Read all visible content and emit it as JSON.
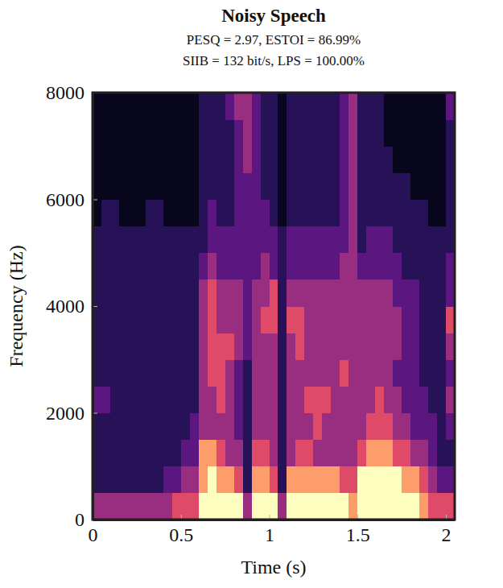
{
  "chart_data": {
    "type": "heatmap",
    "title": "Noisy Speech",
    "subtitle": [
      "PESQ = 2.97, ESTOI = 86.99%",
      "SIIB = 132 bit/s, LPS = 100.00%"
    ],
    "x_label": "Time (s)",
    "y_label": "Frequency (Hz)",
    "xlim": [
      0,
      2.05
    ],
    "ylim": [
      0,
      8000
    ],
    "xticks": [
      0,
      0.5,
      1,
      1.5,
      2
    ],
    "yticks": [
      0,
      2000,
      4000,
      6000,
      8000
    ],
    "zlim": [
      -70,
      0
    ],
    "x": [
      0.025,
      0.075,
      0.125,
      0.175,
      0.225,
      0.275,
      0.325,
      0.375,
      0.425,
      0.475,
      0.525,
      0.575,
      0.625,
      0.675,
      0.725,
      0.775,
      0.825,
      0.875,
      0.925,
      0.975,
      1.025,
      1.075,
      1.125,
      1.175,
      1.225,
      1.275,
      1.325,
      1.375,
      1.425,
      1.475,
      1.525,
      1.575,
      1.625,
      1.675,
      1.725,
      1.775,
      1.825,
      1.875,
      1.925,
      1.975,
      2.025
    ],
    "y": [
      250,
      750,
      1250,
      1750,
      2250,
      2750,
      3250,
      3750,
      4250,
      4750,
      5250,
      5750,
      6250,
      6750,
      7250,
      7750
    ],
    "z": [
      [
        -30,
        -30,
        -30,
        -30,
        -30,
        -30,
        -30,
        -30,
        -30,
        -20,
        -20,
        -20,
        0,
        0,
        0,
        0,
        0,
        -30,
        0,
        0,
        0,
        -30,
        0,
        0,
        0,
        0,
        0,
        0,
        0,
        -10,
        0,
        0,
        0,
        0,
        0,
        0,
        0,
        -10,
        -20,
        -20,
        -20
      ],
      [
        -50,
        -50,
        -50,
        -50,
        -50,
        -50,
        -50,
        -50,
        -40,
        -40,
        -30,
        -30,
        -10,
        0,
        -10,
        -10,
        -20,
        -50,
        -10,
        -10,
        -20,
        -50,
        -10,
        -10,
        -10,
        -10,
        -10,
        -10,
        -20,
        -20,
        0,
        0,
        0,
        0,
        0,
        -10,
        -10,
        -20,
        -30,
        -40,
        -40
      ],
      [
        -50,
        -50,
        -50,
        -50,
        -50,
        -50,
        -50,
        -50,
        -50,
        -50,
        -40,
        -40,
        -10,
        -10,
        -20,
        -30,
        -30,
        -50,
        -20,
        -20,
        -30,
        -50,
        -30,
        -20,
        -20,
        -30,
        -30,
        -30,
        -30,
        -30,
        -20,
        -10,
        -10,
        -10,
        -20,
        -20,
        -30,
        -30,
        -40,
        -50,
        -50
      ],
      [
        -50,
        -50,
        -50,
        -50,
        -50,
        -50,
        -50,
        -50,
        -50,
        -50,
        -50,
        -40,
        -30,
        -30,
        -30,
        -30,
        -40,
        -50,
        -30,
        -30,
        -30,
        -50,
        -30,
        -30,
        -30,
        -20,
        -30,
        -30,
        -30,
        -30,
        -30,
        -20,
        -20,
        -20,
        -30,
        -30,
        -40,
        -40,
        -40,
        -50,
        -40
      ],
      [
        -40,
        -40,
        -50,
        -50,
        -50,
        -50,
        -50,
        -50,
        -50,
        -50,
        -50,
        -50,
        -30,
        -30,
        -20,
        -30,
        -40,
        -50,
        -30,
        -30,
        -30,
        -50,
        -30,
        -30,
        -20,
        -20,
        -20,
        -30,
        -30,
        -30,
        -30,
        -30,
        -20,
        -30,
        -30,
        -40,
        -40,
        -40,
        -50,
        -50,
        -30
      ],
      [
        -50,
        -50,
        -50,
        -50,
        -50,
        -50,
        -50,
        -50,
        -50,
        -50,
        -50,
        -50,
        -30,
        -20,
        -20,
        -30,
        -40,
        -50,
        -30,
        -30,
        -30,
        -50,
        -30,
        -30,
        -30,
        -30,
        -30,
        -30,
        -20,
        -30,
        -30,
        -30,
        -30,
        -30,
        -40,
        -40,
        -40,
        -50,
        -50,
        -50,
        -40
      ],
      [
        -50,
        -50,
        -50,
        -50,
        -50,
        -50,
        -50,
        -50,
        -50,
        -50,
        -50,
        -50,
        -30,
        -20,
        -20,
        -20,
        -30,
        -40,
        -30,
        -30,
        -30,
        -50,
        -30,
        -20,
        -30,
        -30,
        -30,
        -30,
        -30,
        -30,
        -30,
        -30,
        -30,
        -30,
        -30,
        -40,
        -40,
        -50,
        -50,
        -50,
        -30
      ],
      [
        -50,
        -50,
        -50,
        -50,
        -50,
        -50,
        -50,
        -50,
        -50,
        -50,
        -50,
        -50,
        -30,
        -20,
        -30,
        -30,
        -30,
        -40,
        -30,
        -20,
        -20,
        -50,
        -20,
        -20,
        -30,
        -30,
        -30,
        -30,
        -30,
        -30,
        -30,
        -30,
        -30,
        -30,
        -30,
        -40,
        -40,
        -50,
        -50,
        -50,
        -20
      ],
      [
        -50,
        -50,
        -50,
        -50,
        -50,
        -50,
        -50,
        -50,
        -50,
        -50,
        -50,
        -50,
        -30,
        -20,
        -30,
        -30,
        -30,
        -40,
        -30,
        -30,
        -20,
        -50,
        -30,
        -30,
        -30,
        -30,
        -30,
        -30,
        -30,
        -30,
        -30,
        -30,
        -30,
        -30,
        -40,
        -40,
        -40,
        -50,
        -50,
        -50,
        -40
      ],
      [
        -50,
        -50,
        -50,
        -50,
        -50,
        -50,
        -50,
        -50,
        -50,
        -50,
        -50,
        -50,
        -40,
        -30,
        -40,
        -40,
        -40,
        -40,
        -40,
        -30,
        -40,
        -50,
        -40,
        -40,
        -40,
        -40,
        -40,
        -40,
        -30,
        -30,
        -40,
        -40,
        -40,
        -40,
        -40,
        -50,
        -50,
        -50,
        -50,
        -50,
        -40
      ],
      [
        -50,
        -50,
        -50,
        -50,
        -50,
        -50,
        -50,
        -50,
        -50,
        -50,
        -50,
        -50,
        -50,
        -40,
        -40,
        -40,
        -40,
        -40,
        -40,
        -40,
        -40,
        -50,
        -40,
        -40,
        -40,
        -40,
        -40,
        -40,
        -40,
        -30,
        -50,
        -40,
        -40,
        -40,
        -50,
        -50,
        -50,
        -50,
        -50,
        -50,
        -50
      ],
      [
        -60,
        -50,
        -50,
        -60,
        -60,
        -60,
        -50,
        -50,
        -60,
        -60,
        -60,
        -60,
        -50,
        -40,
        -50,
        -50,
        -40,
        -40,
        -40,
        -40,
        -50,
        -60,
        -50,
        -50,
        -50,
        -50,
        -50,
        -50,
        -40,
        -30,
        -50,
        -50,
        -50,
        -50,
        -50,
        -50,
        -50,
        -50,
        -60,
        -60,
        -50
      ],
      [
        -60,
        -60,
        -60,
        -60,
        -60,
        -60,
        -60,
        -60,
        -60,
        -60,
        -60,
        -60,
        -50,
        -50,
        -50,
        -50,
        -40,
        -40,
        -40,
        -50,
        -50,
        -60,
        -50,
        -50,
        -50,
        -50,
        -50,
        -50,
        -40,
        -30,
        -50,
        -50,
        -50,
        -50,
        -50,
        -50,
        -60,
        -60,
        -60,
        -60,
        -50
      ],
      [
        -60,
        -60,
        -60,
        -60,
        -60,
        -60,
        -60,
        -60,
        -60,
        -60,
        -60,
        -60,
        -50,
        -50,
        -50,
        -50,
        -40,
        -30,
        -40,
        -50,
        -50,
        -60,
        -50,
        -50,
        -50,
        -50,
        -50,
        -50,
        -40,
        -30,
        -50,
        -50,
        -50,
        -50,
        -60,
        -60,
        -60,
        -60,
        -60,
        -60,
        -50
      ],
      [
        -60,
        -60,
        -60,
        -60,
        -60,
        -60,
        -60,
        -60,
        -60,
        -60,
        -60,
        -60,
        -50,
        -50,
        -50,
        -50,
        -40,
        -30,
        -40,
        -50,
        -50,
        -60,
        -50,
        -50,
        -50,
        -50,
        -50,
        -50,
        -40,
        -30,
        -50,
        -50,
        -50,
        -60,
        -60,
        -60,
        -60,
        -60,
        -60,
        -60,
        -50
      ],
      [
        -60,
        -60,
        -60,
        -60,
        -60,
        -60,
        -60,
        -60,
        -60,
        -60,
        -60,
        -60,
        -50,
        -50,
        -50,
        -40,
        -30,
        -30,
        -40,
        -50,
        -50,
        -60,
        -50,
        -50,
        -50,
        -50,
        -50,
        -50,
        -40,
        -30,
        -50,
        -50,
        -50,
        -60,
        -60,
        -60,
        -60,
        -60,
        -60,
        -60,
        -40
      ]
    ]
  }
}
